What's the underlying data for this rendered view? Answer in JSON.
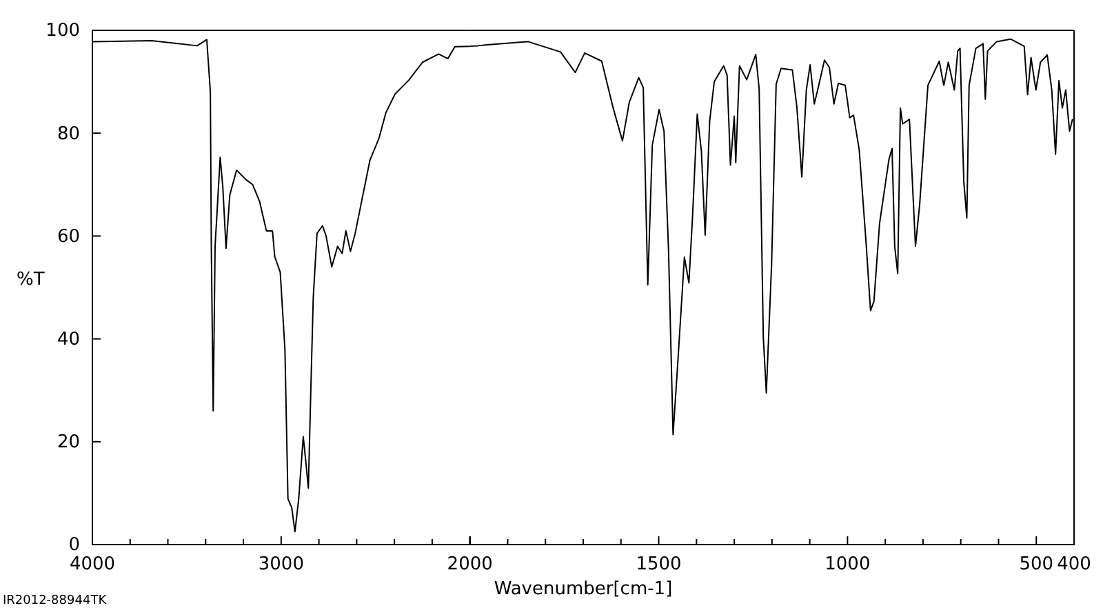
{
  "chart_data": [
    {
      "type": "line",
      "ylabel": "%T",
      "annotations": [
        "IR2012-88944TK"
      ],
      "xlim": [
        4000,
        2000
      ],
      "ylim": [
        0,
        100
      ],
      "xticks": [
        4000,
        {
          "value": 3800,
          "label": null
        },
        {
          "value": 3600,
          "label": null
        },
        {
          "value": 3400,
          "label": null
        },
        {
          "value": 3200,
          "label": null
        },
        3000,
        {
          "value": 2800,
          "label": null
        },
        {
          "value": 2600,
          "label": null
        },
        {
          "value": 2400,
          "label": null
        },
        {
          "value": 2200,
          "label": null
        }
      ],
      "yticks": [
        0,
        20,
        40,
        60,
        80,
        100
      ],
      "grid": false,
      "marker": "none",
      "line_style": "solid",
      "series": [
        {
          "color": "#000000",
          "x": [
            4000,
            3686,
            3445,
            3394,
            3375,
            3370,
            3360,
            3350,
            3323,
            3309,
            3292,
            3272,
            3236,
            3187,
            3151,
            3114,
            3078,
            3046,
            3034,
            3005,
            2980,
            2964,
            2944,
            2927,
            2907,
            2883,
            2869,
            2856,
            2842,
            2830,
            2810,
            2781,
            2762,
            2732,
            2701,
            2677,
            2657,
            2633,
            2608,
            2579,
            2530,
            2482,
            2445,
            2397,
            2324,
            2251,
            2166,
            2117,
            2080,
            2000
          ],
          "values": [
            97.8,
            98,
            97,
            98.2,
            88,
            58,
            26,
            58,
            75.3,
            69.5,
            57.6,
            68,
            72.8,
            71,
            70,
            66.7,
            61,
            61,
            56,
            53,
            38,
            8.9,
            7.2,
            2.5,
            8.9,
            21,
            16,
            11,
            31.3,
            48,
            60.5,
            62,
            60,
            54,
            58,
            56.6,
            61,
            57,
            60.5,
            65.8,
            74.7,
            79,
            84,
            87.6,
            90.3,
            93.8,
            95.4,
            94.5,
            96.8,
            96.9
          ]
        }
      ]
    },
    {
      "type": "line",
      "xlabel": "Wavenumber[cm-1]",
      "tick_labels": "x",
      "xlim": [
        2000,
        400
      ],
      "ylim": [
        0,
        100
      ],
      "xticks": [
        2000,
        {
          "value": 1900,
          "label": null
        },
        {
          "value": 1800,
          "label": null
        },
        {
          "value": 1700,
          "label": null
        },
        {
          "value": 1600,
          "label": null
        },
        1500,
        {
          "value": 1400,
          "label": null
        },
        {
          "value": 1300,
          "label": null
        },
        {
          "value": 1200,
          "label": null
        },
        {
          "value": 1100,
          "label": null
        },
        1000,
        {
          "value": 900,
          "label": null
        },
        {
          "value": 800,
          "label": null
        },
        {
          "value": 700,
          "label": null
        },
        {
          "value": 600,
          "label": null
        },
        500,
        400
      ],
      "grid": false,
      "marker": "none",
      "line_style": "solid",
      "series": [
        {
          "color": "#000000",
          "x": [
            2000,
            1979,
            1955,
            1846,
            1760,
            1721,
            1696,
            1651,
            1620,
            1596,
            1578,
            1553,
            1541,
            1529,
            1517,
            1499,
            1486,
            1474,
            1462,
            1450,
            1432,
            1420,
            1410,
            1398,
            1387,
            1377,
            1365,
            1353,
            1328,
            1319,
            1310,
            1300,
            1296,
            1286,
            1267,
            1243,
            1234,
            1223,
            1215,
            1201,
            1189,
            1176,
            1146,
            1134,
            1121,
            1109,
            1099,
            1088,
            1079,
            1061,
            1048,
            1036,
            1024,
            1006,
            994,
            984,
            969,
            951,
            939,
            930,
            915,
            890,
            882,
            875,
            867,
            860,
            854,
            836,
            820,
            809,
            787,
            757,
            745,
            733,
            717,
            708,
            702,
            692,
            684,
            678,
            660,
            641,
            635,
            629,
            605,
            568,
            532,
            523,
            514,
            501,
            489,
            471,
            459,
            449,
            440,
            431,
            422,
            412,
            404
          ],
          "values": [
            96.9,
            97,
            97.2,
            97.8,
            95.8,
            91.8,
            95.6,
            94,
            84.7,
            78.5,
            86,
            90.8,
            88.9,
            50.5,
            77.7,
            84.6,
            80.4,
            57.2,
            21.4,
            34.8,
            55.9,
            50.9,
            64.4,
            83.7,
            76.5,
            60.2,
            82.4,
            90,
            93.1,
            91.3,
            73.8,
            83.3,
            74.3,
            93.1,
            90.4,
            95.3,
            88.6,
            40.3,
            29.5,
            54.6,
            89.5,
            92.6,
            92.3,
            85,
            71.5,
            88.4,
            93.3,
            85.7,
            88.4,
            94.2,
            92.8,
            85.7,
            89.7,
            89.3,
            83,
            83.5,
            76.8,
            58.9,
            45.5,
            47.3,
            62.5,
            75,
            77,
            58,
            52.7,
            84.9,
            81.8,
            82.7,
            58,
            66,
            89.3,
            94,
            89.3,
            93.8,
            88.4,
            96,
            96.5,
            70.6,
            63.5,
            89.3,
            96.5,
            97.4,
            86.6,
            96,
            97.8,
            98.3,
            96.9,
            87.5,
            94.7,
            88.4,
            93.8,
            95.2,
            88.4,
            75.9,
            90.2,
            84.9,
            88.4,
            80.4,
            82.7
          ]
        }
      ]
    }
  ]
}
